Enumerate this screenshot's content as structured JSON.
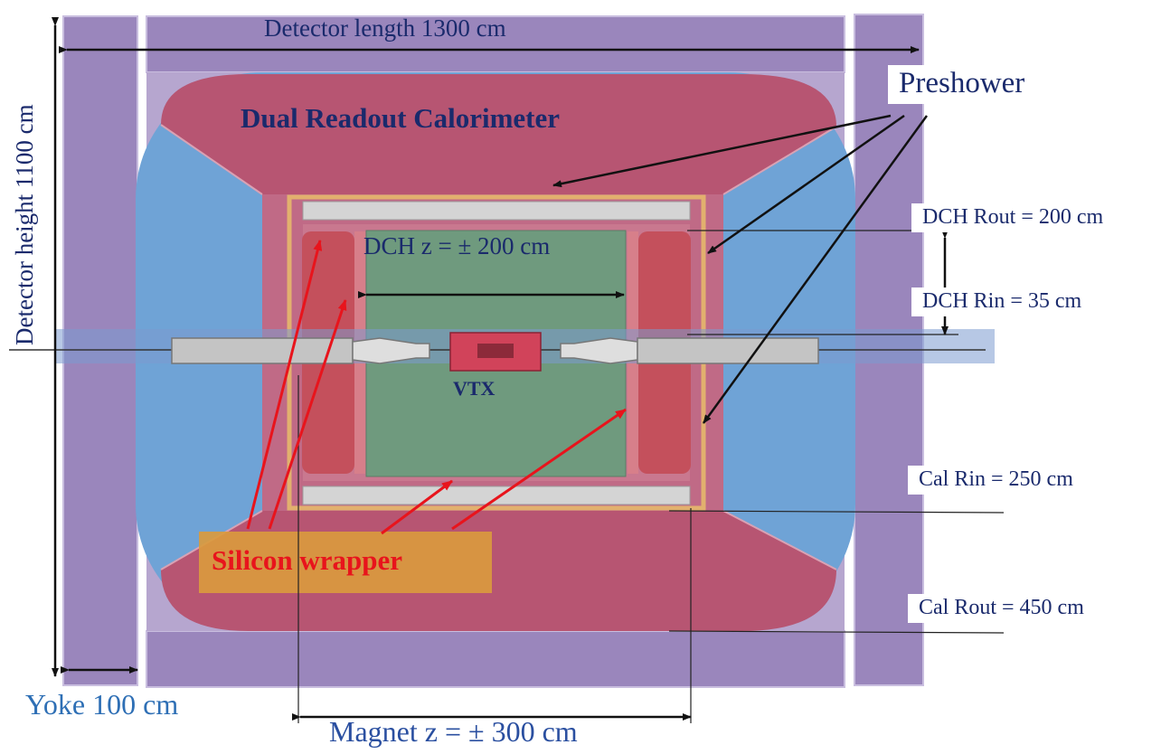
{
  "diagram": {
    "labels": {
      "detector_length": "Detector length 1300 cm",
      "detector_height": "Detector height 1100 cm",
      "dual_readout": "Dual Readout Calorimeter",
      "preshower": "Preshower",
      "dch_z": "DCH z = ± 200 cm",
      "dch_rout": "DCH Rout = 200 cm",
      "dch_rin": "DCH Rin  =    35 cm",
      "vtx": "VTX",
      "cal_rin": "Cal Rin   =  250 cm",
      "cal_rout": "Cal Rout =  450 cm",
      "silicon_wrapper": "Silicon wrapper",
      "yoke": "Yoke 100 cm",
      "magnet_z": "Magnet z =  ± 300 cm"
    },
    "colors": {
      "yoke": "#9a86bc",
      "calorimeter": "#b75572",
      "endcap": "#6fa3d6",
      "drift_chamber": "#6f9a7e",
      "preshower_frame": "#e2b06e",
      "solenoid": "#c4c4c4",
      "arrow_red": "#e8141c",
      "text_navy": "#1a2a6c",
      "text_blue": "#2e6fb5",
      "wrapper_box": "#d99a3e"
    }
  }
}
